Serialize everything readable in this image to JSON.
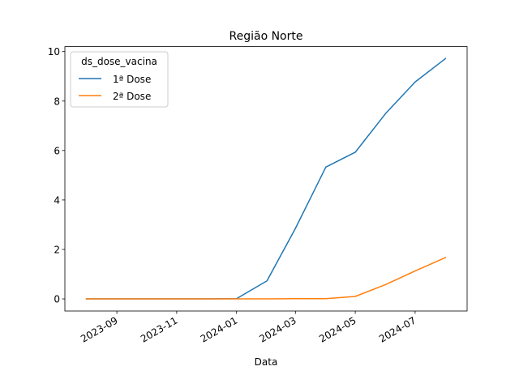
{
  "chart_data": {
    "type": "line",
    "title": "Região Norte",
    "xlabel": "Data",
    "ylabel": "",
    "x": [
      "2023-08-01",
      "2023-09-01",
      "2023-10-01",
      "2023-11-01",
      "2023-12-01",
      "2024-01-01",
      "2024-02-01",
      "2024-03-01",
      "2024-04-01",
      "2024-05-01",
      "2024-06-01",
      "2024-07-01",
      "2024-08-01"
    ],
    "x_ticks": [
      "2023-09",
      "2023-11",
      "2024-01",
      "2024-03",
      "2024-05",
      "2024-07"
    ],
    "xlim": [
      "2023-07-10",
      "2024-08-23"
    ],
    "y_ticks": [
      "0",
      "2",
      "4",
      "6",
      "8",
      "10"
    ],
    "ylim": [
      -0.49,
      10.2
    ],
    "legend": {
      "title": "ds_dose_vacina",
      "position": "top-left"
    },
    "grid": false,
    "series": [
      {
        "name": "1ª Dose",
        "color": "#1f77b4",
        "values": [
          0,
          0,
          0,
          0,
          0,
          0.01,
          0.73,
          2.85,
          5.33,
          5.93,
          7.5,
          8.77,
          9.72
        ]
      },
      {
        "name": "2ª Dose",
        "color": "#ff7f0e",
        "values": [
          0,
          0,
          0,
          0,
          0,
          0,
          0,
          0.01,
          0.01,
          0.1,
          0.58,
          1.13,
          1.67
        ]
      }
    ]
  }
}
